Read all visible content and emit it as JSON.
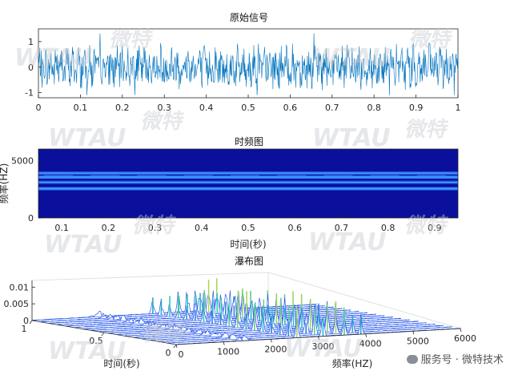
{
  "watermark": {
    "logo": "WTAU",
    "brand": "微特"
  },
  "footer": {
    "text": "服务号 · 微特技术",
    "icon": "chat-icon"
  },
  "chart_data": [
    {
      "type": "line",
      "title": "原始信号",
      "xlabel": "",
      "ylabel": "",
      "xlim": [
        0,
        1
      ],
      "ylim": [
        -1.2,
        1.5
      ],
      "xticks": [
        "0",
        "0.1",
        "0.2",
        "0.3",
        "0.4",
        "0.5",
        "0.6",
        "0.7",
        "0.8",
        "0.9",
        "1"
      ],
      "yticks": [
        "-1",
        "0",
        "1"
      ],
      "color": "#0072bd",
      "signal_description": "dense noisy oscillation roughly between -1 and 1",
      "grid": false
    },
    {
      "type": "heatmap",
      "title": "时频图",
      "xlabel": "时间(秒)",
      "ylabel": "频率(HZ)",
      "xlim": [
        0.05,
        0.95
      ],
      "ylim": [
        0,
        6000
      ],
      "xticks": [
        "0.1",
        "0.2",
        "0.3",
        "0.4",
        "0.5",
        "0.6",
        "0.7",
        "0.8",
        "0.9"
      ],
      "yticks": [
        "0",
        "5000"
      ],
      "bands_hz": [
        2550,
        3100,
        3550,
        3900
      ],
      "colormap": "parula-low",
      "colors": {
        "background": "#0a0f9c",
        "band": "#2f7bff"
      }
    },
    {
      "type": "area",
      "title": "瀑布图",
      "xlabel": "频率(HZ)",
      "ylabel": "时间(秒)",
      "zlabel": "",
      "freq_ticks": [
        "0",
        "1000",
        "2000",
        "3000",
        "4000",
        "5000",
        "6000"
      ],
      "time_ticks": [
        "0",
        "0.5",
        "1"
      ],
      "z_ticks": [
        "0",
        "0.005",
        "0.01"
      ],
      "zlim": [
        0,
        0.012
      ],
      "colors": {
        "low": "#2a2aff",
        "high": "#f9e01e"
      },
      "peaks_hz": [
        2550,
        3100,
        3550,
        3900
      ]
    }
  ]
}
